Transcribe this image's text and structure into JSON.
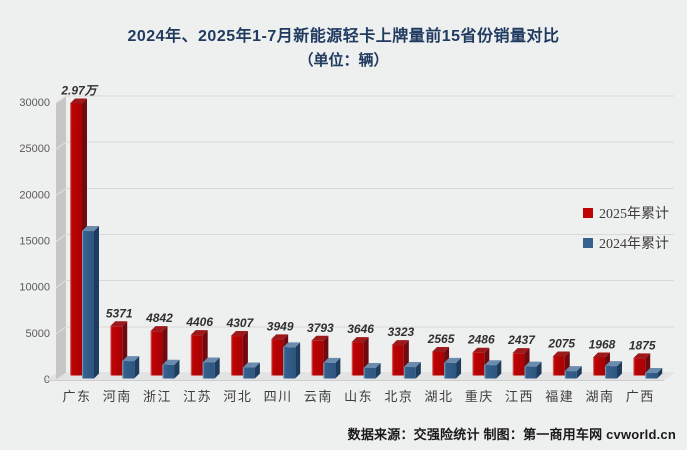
{
  "title": {
    "line1": "2024年、2025年1-7月新能源轻卡上牌量前15省份销量对比",
    "line2": "（单位：辆）"
  },
  "legend": [
    {
      "label": "2025年累计",
      "color": "#BE0304"
    },
    {
      "label": "2024年累计",
      "color": "#36618E"
    }
  ],
  "source": "数据来源：交强险统计 制图：第一商用车网 cvworld.cn",
  "colors": {
    "background": "#EEF0EF",
    "title": "#203A60",
    "grid": "#D9D9D9",
    "wall": "#C6C6C6",
    "wall_notch": "#DEDEDE",
    "floor": "#E3E3E3",
    "floor_edge": "#CDCDCD",
    "red_front": "#BE0304",
    "red_highlight": "#D98E8E",
    "red_side": "#6E0A10",
    "red_top": "#9E191C",
    "blue_front": "#36618E",
    "blue_highlight": "#8FA9C4",
    "blue_side": "#1D3C5E",
    "blue_top": "#6C8CAE",
    "tick_text": "#595959",
    "data_label_text": "#303030",
    "axis_text": "#3C3C3C"
  },
  "chart_data": {
    "type": "bar",
    "style": "3d",
    "title": "2024年、2025年1-7月新能源轻卡上牌量前15省份销量对比",
    "subtitle": "（单位：辆）",
    "unit": "辆",
    "xlabel": "",
    "ylabel": "",
    "categories": [
      "广东",
      "河南",
      "浙江",
      "江苏",
      "河北",
      "四川",
      "云南",
      "山东",
      "北京",
      "湖北",
      "重庆",
      "江西",
      "福建",
      "湖南",
      "广西"
    ],
    "series": [
      {
        "name": "2025年累计",
        "color": "#BE0304",
        "values": [
          29700,
          5371,
          4842,
          4406,
          4307,
          3949,
          3793,
          3646,
          3323,
          2565,
          2486,
          2437,
          2075,
          1968,
          1875
        ],
        "labels": [
          "2.97万",
          "5371",
          "4842",
          "4406",
          "4307",
          "3949",
          "3793",
          "3646",
          "3323",
          "2565",
          "2486",
          "2437",
          "2075",
          "1968",
          "1875"
        ],
        "labels_shown": true
      },
      {
        "name": "2024年累计",
        "color": "#36618E",
        "values": [
          16100,
          1900,
          1500,
          1750,
          1200,
          3400,
          1700,
          1150,
          1250,
          1700,
          1450,
          1300,
          800,
          1350,
          600
        ],
        "values_estimated": true,
        "labels_shown": false
      }
    ],
    "ylim": [
      0,
      30000
    ],
    "yticks": [
      "0",
      "5000",
      "10000",
      "15000",
      "20000",
      "25000",
      "30000"
    ],
    "grid": true,
    "legend_position": "right"
  }
}
